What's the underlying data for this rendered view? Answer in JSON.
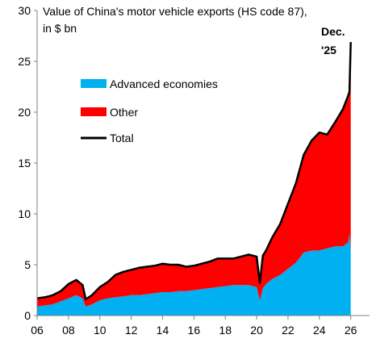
{
  "chart_data": {
    "type": "area",
    "title_lines": [
      "Value of China's motor vehicle exports (HS code 87),",
      "in $ bn"
    ],
    "annotation_lines": [
      "Dec.",
      "'25"
    ],
    "x_tick_labels": [
      "06",
      "08",
      "10",
      "12",
      "14",
      "16",
      "18",
      "20",
      "22",
      "24",
      "26"
    ],
    "x_tick_years": [
      2006,
      2008,
      2010,
      2012,
      2014,
      2016,
      2018,
      2020,
      2022,
      2024,
      2026
    ],
    "xlim": [
      2006,
      2027.2
    ],
    "ylim": [
      0,
      30
    ],
    "y_ticks": [
      0,
      5,
      10,
      15,
      20,
      25,
      30
    ],
    "grid": false,
    "legend": [
      "Advanced economies",
      "Other",
      "Total"
    ],
    "colors": {
      "advanced": "#00B0F0",
      "other": "#FF0000",
      "total": "#000000"
    },
    "x": [
      2006.0,
      2006.5,
      2007.0,
      2007.5,
      2008.0,
      2008.5,
      2008.9,
      2009.1,
      2009.5,
      2010.0,
      2010.5,
      2011.0,
      2011.5,
      2012.0,
      2012.5,
      2013.0,
      2013.5,
      2014.0,
      2014.5,
      2015.0,
      2015.5,
      2016.0,
      2016.5,
      2017.0,
      2017.5,
      2018.0,
      2018.5,
      2019.0,
      2019.5,
      2020.0,
      2020.2,
      2020.4,
      2020.6,
      2021.0,
      2021.5,
      2022.0,
      2022.5,
      2023.0,
      2023.5,
      2024.0,
      2024.5,
      2025.0,
      2025.5,
      2025.83,
      2025.92,
      2026.0
    ],
    "series": [
      {
        "name": "Advanced economies",
        "values": [
          0.9,
          1.0,
          1.1,
          1.4,
          1.7,
          2.0,
          1.7,
          0.9,
          1.1,
          1.5,
          1.7,
          1.8,
          1.9,
          2.0,
          2.0,
          2.1,
          2.2,
          2.3,
          2.3,
          2.4,
          2.4,
          2.5,
          2.6,
          2.7,
          2.8,
          2.9,
          3.0,
          3.0,
          3.0,
          2.8,
          1.5,
          2.7,
          3.1,
          3.6,
          4.0,
          4.6,
          5.2,
          6.2,
          6.4,
          6.4,
          6.6,
          6.8,
          6.8,
          7.2,
          8.0,
          6.5
        ]
      },
      {
        "name": "Other",
        "values": [
          0.8,
          0.8,
          0.9,
          1.0,
          1.4,
          1.5,
          1.3,
          0.7,
          0.9,
          1.3,
          1.6,
          2.2,
          2.4,
          2.5,
          2.7,
          2.7,
          2.7,
          2.8,
          2.7,
          2.6,
          2.4,
          2.4,
          2.5,
          2.6,
          2.8,
          2.7,
          2.6,
          2.8,
          3.0,
          3.0,
          1.7,
          3.2,
          3.3,
          4.1,
          5.0,
          6.4,
          7.8,
          9.6,
          10.8,
          11.6,
          11.2,
          12.2,
          13.5,
          14.4,
          14.0,
          20.4
        ]
      }
    ],
    "total": [
      1.7,
      1.8,
      2.0,
      2.4,
      3.1,
      3.5,
      3.0,
      1.6,
      2.0,
      2.8,
      3.3,
      4.0,
      4.3,
      4.5,
      4.7,
      4.8,
      4.9,
      5.1,
      5.0,
      5.0,
      4.8,
      4.9,
      5.1,
      5.3,
      5.6,
      5.6,
      5.6,
      5.8,
      6.0,
      5.8,
      3.2,
      5.9,
      6.4,
      7.7,
      9.0,
      11.0,
      13.0,
      15.8,
      17.2,
      18.0,
      17.8,
      19.0,
      20.3,
      21.6,
      22.0,
      26.9
    ]
  }
}
